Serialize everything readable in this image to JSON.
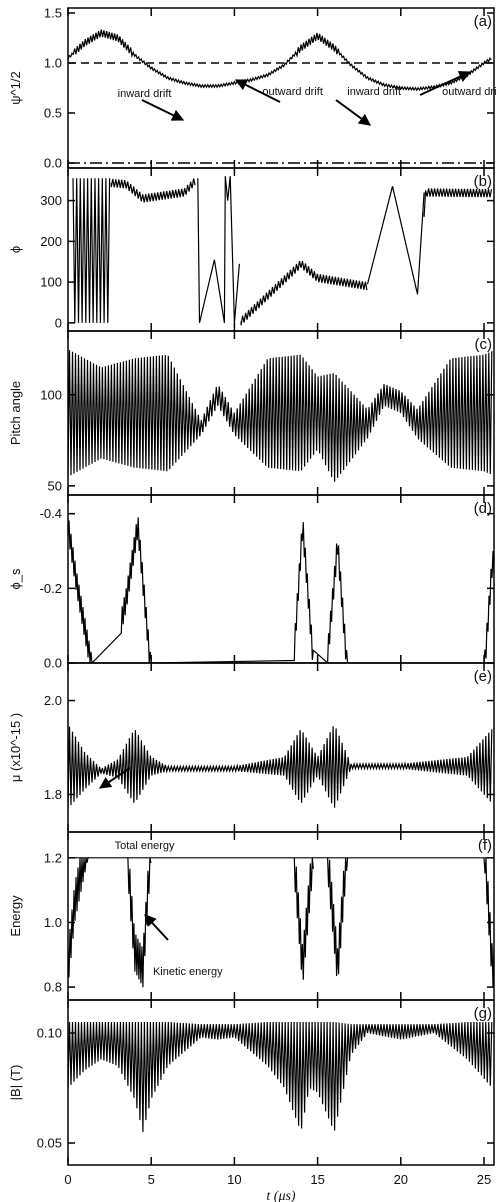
{
  "figure": {
    "xlabel": "t (μs)",
    "xticks": [
      0,
      5,
      10,
      15,
      20,
      25
    ],
    "xtick_labels": [
      "0",
      "5",
      "10",
      "15",
      "20",
      "25"
    ]
  },
  "chart_data": [
    {
      "type": "line",
      "panel": "(a)",
      "ylabel": "ψ^1/2",
      "ylim": [
        -0.05,
        1.55
      ],
      "yticks": [
        0.0,
        0.5,
        1.0,
        1.5
      ],
      "ytick_labels": [
        "0.0",
        "0.5",
        "1.0",
        "1.5"
      ],
      "reference_lines": [
        {
          "y": 1.0,
          "style": "dashed"
        },
        {
          "y": 0.0,
          "style": "dash-dot"
        }
      ],
      "series": [
        {
          "x": [
            0,
            1,
            2,
            3,
            4,
            5,
            6,
            7,
            8,
            9,
            10,
            11,
            12,
            13,
            14,
            15,
            16,
            17,
            18,
            19,
            20,
            21,
            22,
            23,
            24,
            25,
            25.5
          ],
          "y": [
            1.05,
            1.2,
            1.3,
            1.25,
            1.08,
            0.95,
            0.85,
            0.8,
            0.77,
            0.77,
            0.8,
            0.83,
            0.88,
            0.98,
            1.15,
            1.27,
            1.15,
            0.98,
            0.85,
            0.78,
            0.75,
            0.74,
            0.76,
            0.8,
            0.88,
            1.0,
            1.05
          ]
        }
      ],
      "annotations": [
        {
          "text": "inward drift",
          "x": 4.6,
          "y": 0.7
        },
        {
          "text": "outward drift",
          "x": 13.5,
          "y": 0.72
        },
        {
          "text": "inward drift",
          "x": 18.4,
          "y": 0.72
        },
        {
          "text": "outward drift",
          "x": 24.3,
          "y": 0.72
        }
      ]
    },
    {
      "type": "line",
      "panel": "(b)",
      "ylabel": "ϕ",
      "ylim": [
        -20,
        380
      ],
      "yticks": [
        0,
        100,
        200,
        300
      ],
      "ytick_labels": [
        "0",
        "100",
        "200",
        "300"
      ],
      "series": [
        {
          "x": [
            0.3,
            0.8,
            3.5,
            4.5,
            7.0,
            7.8,
            8.0,
            8.8,
            9.5,
            9.7,
            10.3,
            14.0,
            15.0,
            18.0,
            18.8,
            19.5,
            21.0,
            21.5,
            25.5
          ],
          "y": [
            350,
            350,
            340,
            305,
            320,
            355,
            0,
            155,
            0,
            360,
            0,
            145,
            110,
            90,
            100,
            335,
            70,
            320,
            318
          ]
        }
      ]
    },
    {
      "type": "line",
      "panel": "(c)",
      "ylabel": "Pitch angle",
      "ylim": [
        45,
        135
      ],
      "yticks": [
        50,
        100
      ],
      "ytick_labels": [
        "50",
        "100"
      ],
      "series": [
        {
          "x": [
            0,
            2,
            4,
            6,
            8,
            9,
            10,
            12,
            14,
            15,
            16,
            18,
            19,
            20,
            21,
            23,
            25,
            25.5
          ],
          "y_center": [
            90,
            90,
            90,
            90,
            82,
            100,
            84,
            90,
            90,
            90,
            82,
            84,
            100,
            96,
            84,
            90,
            90,
            90
          ],
          "y_half_amplitude": [
            35,
            25,
            30,
            32,
            4,
            6,
            6,
            30,
            32,
            20,
            30,
            8,
            6,
            6,
            8,
            30,
            32,
            34
          ]
        }
      ]
    },
    {
      "type": "line",
      "panel": "(d)",
      "ylabel": "ϕ_s",
      "ylim": [
        0.0,
        -0.45
      ],
      "yticks": [
        0.0,
        -0.2,
        -0.4
      ],
      "ytick_labels": [
        "0.0",
        "-0.2",
        "-0.4"
      ],
      "series": [
        {
          "x": [
            0,
            0.5,
            1.5,
            2.5,
            3.5,
            4.2,
            5.0,
            13.5,
            14.1,
            14.8,
            15.5,
            16.2,
            16.8,
            25.0,
            25.5
          ],
          "y": [
            -0.4,
            -0.25,
            0.0,
            0.0,
            -0.2,
            -0.4,
            0.0,
            0.0,
            -0.4,
            0.0,
            0.0,
            -0.35,
            0.0,
            0.0,
            -0.3
          ]
        }
      ]
    },
    {
      "type": "line",
      "panel": "(e)",
      "ylabel": "μ (x10^-15 )",
      "ylim": [
        1.72,
        2.08
      ],
      "yticks": [
        1.8,
        2.0
      ],
      "ytick_labels": [
        "1.8",
        "2.0"
      ],
      "series": [
        {
          "x": [
            0,
            1,
            2,
            3,
            4,
            5,
            6,
            10,
            13,
            14,
            15,
            16,
            17,
            20,
            24,
            25.5
          ],
          "y_center": [
            1.86,
            1.85,
            1.85,
            1.855,
            1.86,
            1.86,
            1.855,
            1.855,
            1.86,
            1.86,
            1.86,
            1.86,
            1.86,
            1.86,
            1.86,
            1.86
          ],
          "y_half_amplitude": [
            0.09,
            0.04,
            0.005,
            0.02,
            0.08,
            0.02,
            0.005,
            0.005,
            0.02,
            0.08,
            0.02,
            0.09,
            0.005,
            0.005,
            0.02,
            0.08
          ]
        }
      ]
    },
    {
      "type": "line",
      "panel": "(f)",
      "ylabel": "Energy",
      "ylim": [
        0.76,
        1.28
      ],
      "yticks": [
        0.8,
        1.0,
        1.2
      ],
      "ytick_labels": [
        "0.8",
        "1.0",
        "1.2"
      ],
      "series": [
        {
          "x": [
            0,
            25.5
          ],
          "y": [
            1.2,
            1.2
          ]
        },
        {
          "x": [
            0,
            0.4,
            1.2,
            2.0,
            3.5,
            4.0,
            4.5,
            5.0,
            13.5,
            14.1,
            14.8,
            15.5,
            16.2,
            16.8,
            25.0,
            25.5
          ],
          "y": [
            0.8,
            1.0,
            1.2,
            1.2,
            1.2,
            0.85,
            0.8,
            1.2,
            1.2,
            0.8,
            1.2,
            1.2,
            0.8,
            1.2,
            1.2,
            0.8
          ]
        }
      ],
      "annotations": [
        {
          "text": "Total energy",
          "x": 4.6,
          "y": 1.24
        },
        {
          "text": "Kinetic energy",
          "x": 7.2,
          "y": 0.85
        }
      ]
    },
    {
      "type": "line",
      "panel": "(g)",
      "ylabel": "|B| (T)",
      "ylim": [
        0.04,
        0.115
      ],
      "yticks": [
        0.05,
        0.1
      ],
      "ytick_labels": [
        "0.05",
        "0.10"
      ],
      "series": [
        {
          "x": [
            0,
            1,
            2,
            3,
            4,
            4.5,
            5,
            6,
            8,
            9,
            10,
            12,
            13,
            14,
            14.5,
            15,
            16,
            17,
            18,
            20,
            22,
            24,
            25.5
          ],
          "y_top": [
            0.105,
            0.105,
            0.105,
            0.105,
            0.105,
            0.105,
            0.105,
            0.105,
            0.104,
            0.104,
            0.104,
            0.105,
            0.105,
            0.105,
            0.105,
            0.105,
            0.105,
            0.104,
            0.104,
            0.104,
            0.104,
            0.105,
            0.105
          ],
          "y_bottom": [
            0.075,
            0.083,
            0.088,
            0.085,
            0.07,
            0.055,
            0.07,
            0.085,
            0.098,
            0.097,
            0.098,
            0.085,
            0.075,
            0.055,
            0.075,
            0.073,
            0.055,
            0.09,
            0.1,
            0.097,
            0.1,
            0.088,
            0.075
          ]
        }
      ]
    }
  ]
}
